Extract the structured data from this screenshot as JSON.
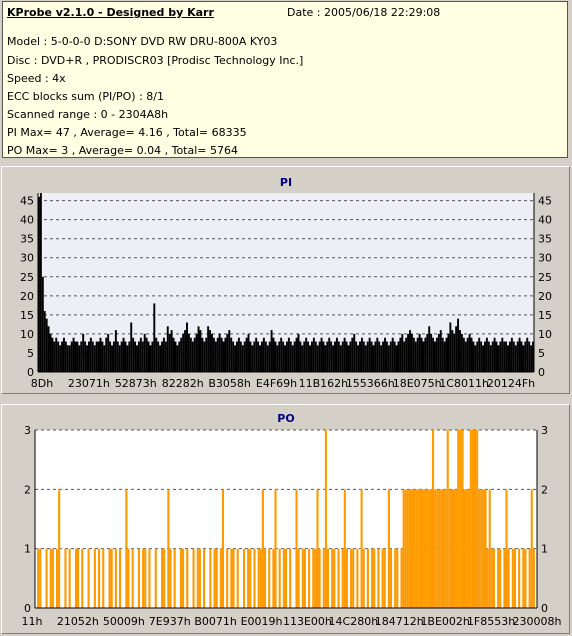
{
  "header": {
    "title": "KProbe v2.1.0 - Designed by Karr",
    "date": "Date : 2005/06/18 22:29:08",
    "lines": [
      "Model : 5-0-0-0 D:SONY     DVD RW DRU-800A  KY03",
      "Disc : DVD+R , PRODISCR03 [Prodisc Technology Inc.]",
      "Speed : 4x",
      "ECC blocks sum (PI/PO) : 8/1",
      "Scanned range : 0 - 2304A8h",
      "PI Max= 47 , Average= 4.16 , Total= 68335",
      "PO Max= 3 , Average= 0.04 , Total= 5764"
    ]
  },
  "colors": {
    "pi_series": "#000000",
    "po_series": "#ff9900",
    "plot_bg_pi": "#eeeef6",
    "plot_bg_po": "#ffffff",
    "title_text": "#000080",
    "info_bg": "#ffffe4"
  },
  "chart_data": [
    {
      "type": "bar",
      "title": "PI",
      "ylim": [
        0,
        47
      ],
      "y_ticks": [
        0,
        5,
        10,
        15,
        20,
        25,
        30,
        35,
        40,
        45
      ],
      "x_tick_labels": [
        "8Dh",
        "23071h",
        "52873h",
        "82282h",
        "B3058h",
        "E4F69h",
        "11B162h",
        "155366h",
        "18E075h",
        "1C8011h",
        "20124Fh"
      ],
      "grid": true,
      "notes": "dense per-block error counts: peak 47 near start, mostly 4-12, spikes to ~18",
      "samples": [
        46,
        47,
        25,
        16,
        14,
        12,
        10,
        9,
        8,
        9,
        8,
        7,
        8,
        9,
        8,
        7,
        7,
        8,
        9,
        8,
        8,
        7,
        8,
        10,
        8,
        7,
        8,
        9,
        8,
        7,
        8,
        8,
        9,
        8,
        7,
        9,
        10,
        8,
        7,
        8,
        11,
        8,
        7,
        8,
        9,
        8,
        7,
        8,
        13,
        9,
        8,
        7,
        8,
        9,
        8,
        10,
        9,
        8,
        7,
        8,
        18,
        9,
        8,
        7,
        8,
        9,
        8,
        12,
        10,
        11,
        9,
        8,
        7,
        8,
        9,
        10,
        11,
        13,
        10,
        9,
        8,
        9,
        10,
        12,
        11,
        9,
        8,
        9,
        12,
        11,
        10,
        9,
        8,
        9,
        10,
        9,
        8,
        9,
        10,
        11,
        9,
        8,
        7,
        8,
        9,
        8,
        7,
        8,
        9,
        10,
        8,
        7,
        8,
        9,
        8,
        7,
        8,
        9,
        8,
        7,
        8,
        11,
        9,
        8,
        7,
        8,
        9,
        8,
        7,
        8,
        9,
        8,
        7,
        8,
        9,
        10,
        8,
        7,
        8,
        9,
        8,
        7,
        8,
        9,
        8,
        7,
        8,
        9,
        8,
        7,
        8,
        9,
        8,
        7,
        8,
        9,
        8,
        7,
        8,
        9,
        8,
        7,
        8,
        9,
        10,
        8,
        7,
        8,
        9,
        8,
        7,
        8,
        9,
        8,
        7,
        8,
        9,
        8,
        7,
        8,
        9,
        8,
        7,
        8,
        9,
        8,
        7,
        8,
        9,
        10,
        8,
        9,
        10,
        11,
        10,
        9,
        8,
        9,
        10,
        9,
        8,
        9,
        10,
        12,
        10,
        9,
        8,
        9,
        10,
        11,
        9,
        8,
        9,
        10,
        13,
        11,
        10,
        12,
        14,
        11,
        10,
        9,
        8,
        9,
        10,
        9,
        8,
        7,
        8,
        9,
        8,
        7,
        8,
        9,
        8,
        7,
        8,
        9,
        8,
        7,
        8,
        9,
        8,
        8,
        7,
        8,
        9,
        8,
        7,
        8,
        9,
        8,
        7,
        8,
        9,
        8,
        7,
        8
      ]
    },
    {
      "type": "bar",
      "title": "PO",
      "ylim": [
        0,
        3
      ],
      "y_ticks": [
        0,
        1,
        2,
        3
      ],
      "x_tick_labels": [
        "11h",
        "21052h",
        "50009h",
        "7E937h",
        "B0071h",
        "E0019h",
        "113E00h",
        "14C280h",
        "184712h",
        "1BE002h",
        "1F8553h",
        "230008h"
      ],
      "grid": true,
      "notes": "sparse spikes of 1-2, dense block of 2 with spikes to 3 between 1BE002h and 1F8553h",
      "samples": [
        0,
        1,
        1,
        0,
        0,
        1,
        0,
        1,
        1,
        0,
        1,
        2,
        0,
        0,
        1,
        0,
        1,
        0,
        0,
        1,
        1,
        0,
        1,
        0,
        0,
        1,
        0,
        0,
        1,
        0,
        1,
        0,
        1,
        0,
        0,
        1,
        1,
        0,
        1,
        0,
        1,
        0,
        0,
        2,
        1,
        0,
        1,
        0,
        0,
        1,
        0,
        1,
        1,
        0,
        1,
        0,
        0,
        1,
        0,
        0,
        1,
        1,
        0,
        2,
        1,
        0,
        1,
        0,
        0,
        1,
        1,
        0,
        1,
        0,
        0,
        1,
        0,
        1,
        1,
        0,
        1,
        0,
        0,
        1,
        0,
        1,
        1,
        0,
        1,
        2,
        0,
        1,
        0,
        1,
        1,
        0,
        1,
        0,
        0,
        1,
        0,
        1,
        1,
        0,
        1,
        0,
        1,
        1,
        2,
        1,
        0,
        1,
        0,
        1,
        2,
        0,
        1,
        0,
        1,
        1,
        0,
        1,
        0,
        0,
        2,
        1,
        0,
        1,
        1,
        0,
        1,
        0,
        1,
        1,
        2,
        1,
        0,
        1,
        3,
        1,
        0,
        1,
        1,
        0,
        1,
        0,
        1,
        2,
        1,
        0,
        1,
        1,
        0,
        1,
        0,
        2,
        1,
        0,
        1,
        0,
        1,
        1,
        0,
        1,
        0,
        1,
        1,
        0,
        2,
        1,
        0,
        1,
        1,
        0,
        1,
        2,
        2,
        2,
        2,
        2,
        2,
        2,
        2,
        2,
        2,
        2,
        2,
        2,
        2,
        3,
        2,
        2,
        2,
        2,
        2,
        2,
        3,
        2,
        2,
        2,
        2,
        3,
        3,
        3,
        2,
        2,
        2,
        3,
        3,
        3,
        3,
        2,
        2,
        2,
        2,
        1,
        2,
        1,
        1,
        0,
        1,
        1,
        0,
        1,
        2,
        1,
        0,
        1,
        1,
        0,
        1,
        0,
        1,
        1,
        0,
        1,
        2,
        1,
        0
      ]
    }
  ]
}
